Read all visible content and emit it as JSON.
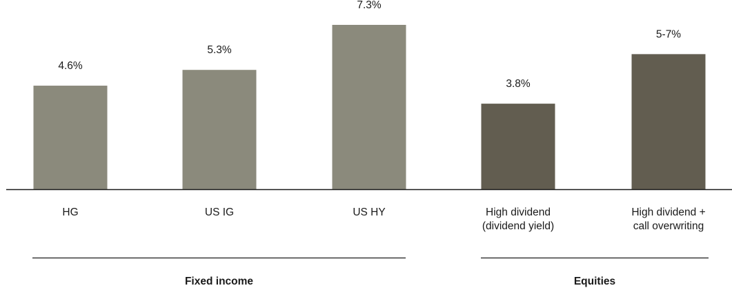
{
  "chart_data": {
    "type": "bar",
    "categories": [
      [
        "HG"
      ],
      [
        "US IG"
      ],
      [
        "US HY"
      ],
      [
        "High dividend",
        "(dividend yield)"
      ],
      [
        "High dividend +",
        "call overwriting"
      ]
    ],
    "values": [
      4.6,
      5.3,
      7.3,
      3.8,
      6.0
    ],
    "data_labels": [
      "4.6%",
      "5.3%",
      "7.3%",
      "3.8%",
      "5-7%"
    ],
    "groups": [
      {
        "name": "Fixed income",
        "indices": [
          0,
          1,
          2
        ]
      },
      {
        "name": "Equities",
        "indices": [
          3,
          4
        ]
      }
    ],
    "ylim": [
      0,
      7.3
    ],
    "grid": false,
    "legend": "none",
    "title": "",
    "xlabel": "",
    "ylabel": "",
    "colors": {
      "fixed_income_bar": "#8b8a7c",
      "equities_bar": "#625d50",
      "axis": "#1a1a1a",
      "text": "#1a1a1a"
    }
  }
}
